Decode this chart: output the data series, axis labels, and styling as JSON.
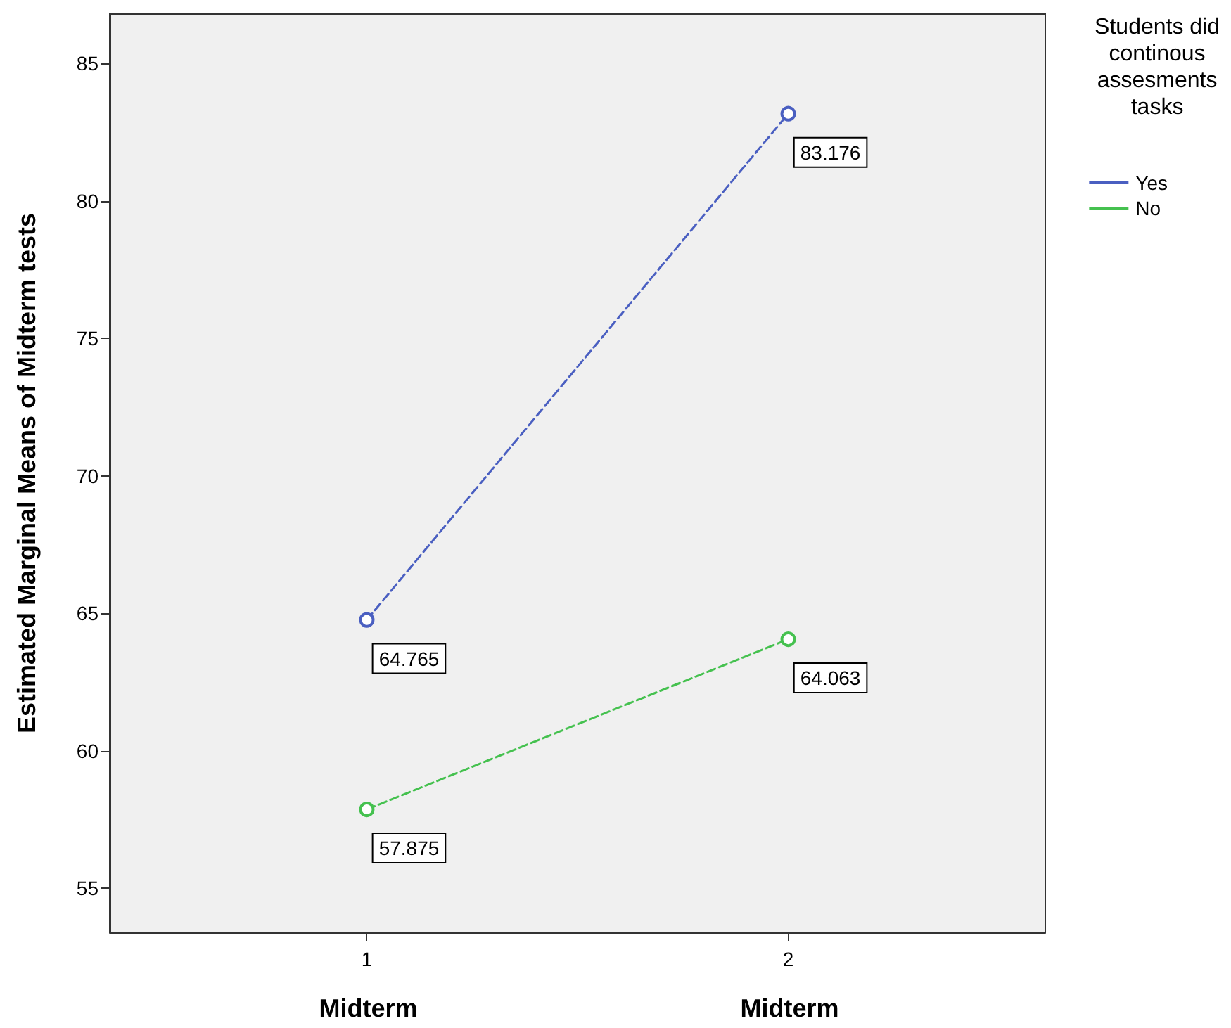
{
  "chart_data": {
    "type": "line",
    "xlabel": "Midterm",
    "annotations": [
      "Midterm"
    ],
    "ylabel": "Estimated Marginal Means of Midterm tests",
    "legend_title": "Students did continous assesments tasks",
    "x": [
      1,
      2
    ],
    "xlim": [
      0.39,
      2.61
    ],
    "xticks": [
      1,
      2
    ],
    "ylim": [
      53.4,
      86.8
    ],
    "yticks": [
      55,
      60,
      65,
      70,
      75,
      80,
      85
    ],
    "series": [
      {
        "name": "Yes",
        "color": "#4a5fc1",
        "values": [
          64.765,
          83.176
        ]
      },
      {
        "name": "No",
        "color": "#45c14f",
        "values": [
          57.875,
          64.063
        ]
      }
    ],
    "data_labels": true,
    "marker": "circle",
    "line_style": "dashed",
    "grid": false,
    "legend": "top right"
  }
}
